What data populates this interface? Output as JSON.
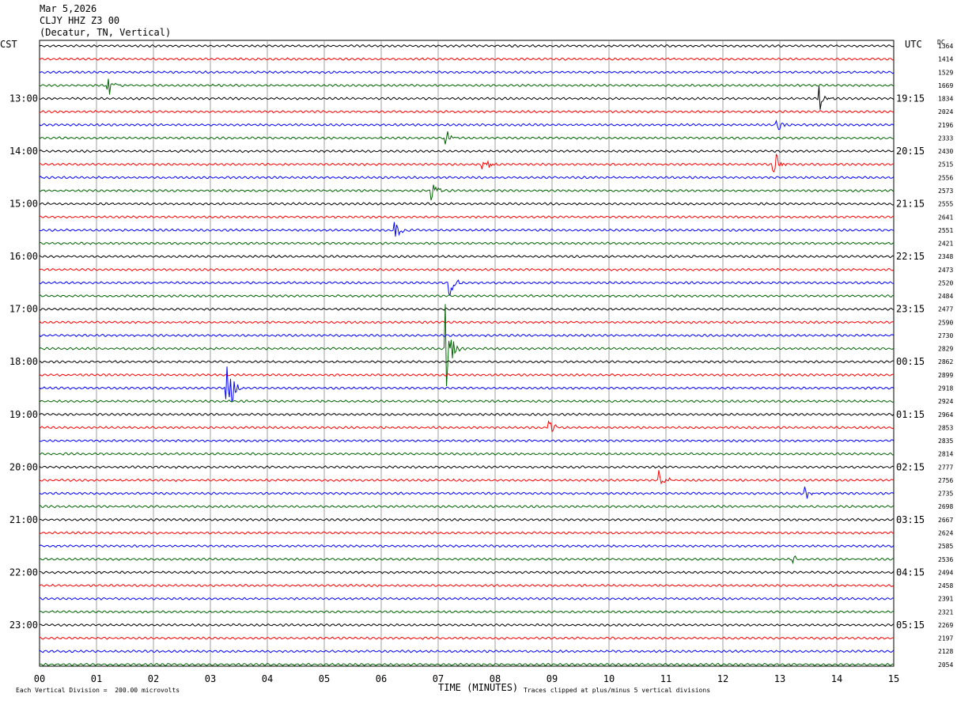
{
  "header": {
    "date": "Mar 5,2026",
    "station": "CLJY HHZ Z3 00",
    "location": "(Decatur, TN, Vertical)"
  },
  "left_axis": {
    "label": "CST",
    "hours": [
      "13:00",
      "14:00",
      "15:00",
      "16:00",
      "17:00",
      "18:00",
      "19:00",
      "20:00",
      "21:00",
      "22:00",
      "23:00"
    ]
  },
  "right_axis": {
    "label": "UTC",
    "hours": [
      "19:15",
      "20:15",
      "21:15",
      "22:15",
      "23:15",
      "00:15",
      "01:15",
      "02:15",
      "03:15",
      "04:15",
      "05:15"
    ]
  },
  "dc_label": "DC",
  "footer": {
    "xlabel": "TIME (MINUTES)",
    "scale_note": "Each Vertical Division =  200.00 microvolts",
    "clip_note": "Traces clipped at plus/minus 5 vertical divisions"
  },
  "chart_data": {
    "type": "line",
    "title": "CLJY HHZ Z3 00",
    "xlabel": "TIME (MINUTES)",
    "xticks": [
      "00",
      "01",
      "02",
      "03",
      "04",
      "05",
      "06",
      "07",
      "08",
      "09",
      "10",
      "11",
      "12",
      "13",
      "14",
      "15"
    ],
    "xlim": [
      0,
      15
    ],
    "trace_colors": [
      "#000000",
      "#ff0000",
      "#0000ff",
      "#006400"
    ],
    "grid": true,
    "dc_offsets": [
      1364,
      1414,
      1529,
      1669,
      1834,
      2024,
      2196,
      2333,
      2430,
      2515,
      2556,
      2573,
      2555,
      2641,
      2551,
      2421,
      2348,
      2473,
      2520,
      2484,
      2477,
      2590,
      2730,
      2829,
      2862,
      2899,
      2918,
      2924,
      2964,
      2853,
      2835,
      2814,
      2777,
      2756,
      2735,
      2698,
      2667,
      2624,
      2585,
      2536,
      2494,
      2458,
      2391,
      2321,
      2269,
      2197,
      2128,
      2054
    ],
    "events": [
      {
        "trace": 3,
        "minute": 1.2,
        "amp": 1.3
      },
      {
        "trace": 4,
        "minute": 13.7,
        "amp": 1.0
      },
      {
        "trace": 6,
        "minute": 12.95,
        "amp": 1.0
      },
      {
        "trace": 7,
        "minute": 7.15,
        "amp": 0.9
      },
      {
        "trace": 9,
        "minute": 7.8,
        "amp": 1.1
      },
      {
        "trace": 9,
        "minute": 12.9,
        "amp": 1.2
      },
      {
        "trace": 11,
        "minute": 6.9,
        "amp": 1.0
      },
      {
        "trace": 14,
        "minute": 6.25,
        "amp": 1.0
      },
      {
        "trace": 18,
        "minute": 7.2,
        "amp": 1.2
      },
      {
        "trace": 23,
        "minute": 7.15,
        "amp": 3.5
      },
      {
        "trace": 26,
        "minute": 3.3,
        "amp": 4.0
      },
      {
        "trace": 29,
        "minute": 8.95,
        "amp": 0.9
      },
      {
        "trace": 33,
        "minute": 10.9,
        "amp": 0.9
      },
      {
        "trace": 34,
        "minute": 13.45,
        "amp": 0.8
      },
      {
        "trace": 39,
        "minute": 13.25,
        "amp": 0.7
      }
    ]
  }
}
